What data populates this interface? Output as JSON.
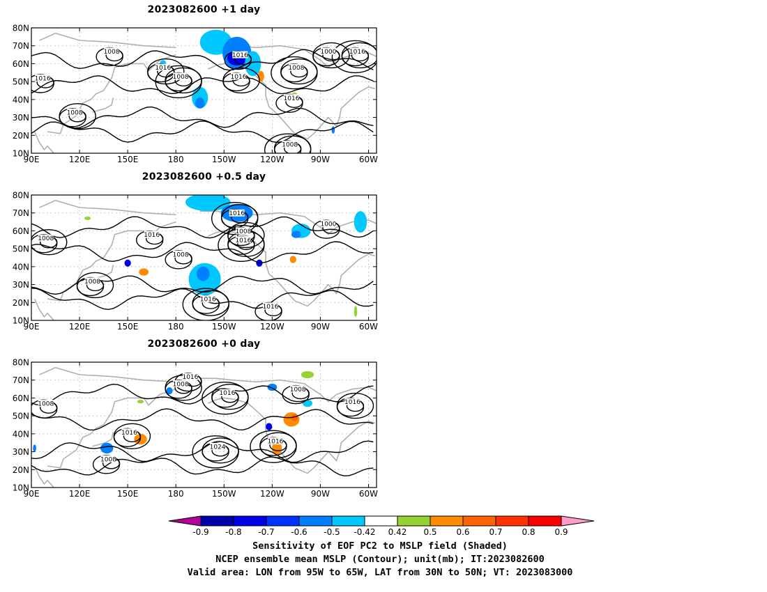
{
  "panels": [
    {
      "title": "2023082600  +1 day",
      "contour_labels": [
        {
          "text": "1008",
          "lon": 140,
          "lat": 67
        },
        {
          "text": "1016",
          "lon": 172,
          "lat": 58
        },
        {
          "text": "1008",
          "lon": 183,
          "lat": 53
        },
        {
          "text": "1016",
          "lon": 220,
          "lat": 65
        },
        {
          "text": "1016",
          "lon": 219,
          "lat": 53
        },
        {
          "text": "1008",
          "lon": 255,
          "lat": 58
        },
        {
          "text": "1016",
          "lon": 252,
          "lat": 41
        },
        {
          "text": "1000",
          "lon": 275,
          "lat": 67
        },
        {
          "text": "1016",
          "lon": 293,
          "lat": 67
        },
        {
          "text": "1016",
          "lon": 97,
          "lat": 52
        },
        {
          "text": "1008",
          "lon": 117,
          "lat": 33
        },
        {
          "text": "1008",
          "lon": 251,
          "lat": 15
        }
      ],
      "shading": [
        {
          "lon": 205,
          "lat": 72,
          "rlon": 10,
          "rlat": 7,
          "color": "#00c8ff"
        },
        {
          "lon": 218,
          "lat": 66,
          "rlon": 9,
          "rlat": 9,
          "color": "#0080ff"
        },
        {
          "lon": 218,
          "lat": 63,
          "rlon": 6,
          "rlat": 4,
          "color": "#0000e6"
        },
        {
          "lon": 228,
          "lat": 60,
          "rlon": 5,
          "rlat": 7,
          "color": "#00c8ff"
        },
        {
          "lon": 195,
          "lat": 41,
          "rlon": 5,
          "rlat": 6,
          "color": "#00c8ff"
        },
        {
          "lon": 195,
          "lat": 38,
          "rlon": 3,
          "rlat": 3,
          "color": "#0080ff"
        },
        {
          "lon": 233,
          "lat": 53,
          "rlon": 2,
          "rlat": 3,
          "color": "#ff8c00"
        },
        {
          "lon": 172,
          "lat": 60,
          "rlon": 2,
          "rlat": 2,
          "color": "#00c8ff"
        },
        {
          "lon": 138,
          "lat": 68,
          "rlon": 2,
          "rlat": 1,
          "color": "#96d232"
        },
        {
          "lon": 278,
          "lat": 23,
          "rlon": 1,
          "rlat": 2,
          "color": "#0080ff"
        },
        {
          "lon": 254,
          "lat": 42,
          "rlon": 2,
          "rlat": 2,
          "color": "#96d232"
        }
      ]
    },
    {
      "title": "2023082600  +0.5 day",
      "contour_labels": [
        {
          "text": "1016",
          "lon": 165,
          "lat": 58
        },
        {
          "text": "1008",
          "lon": 99,
          "lat": 56
        },
        {
          "text": "1016",
          "lon": 218,
          "lat": 70
        },
        {
          "text": "1008",
          "lon": 183,
          "lat": 47
        },
        {
          "text": "1008",
          "lon": 222,
          "lat": 60
        },
        {
          "text": "1016",
          "lon": 222,
          "lat": 55
        },
        {
          "text": "1000",
          "lon": 275,
          "lat": 64
        },
        {
          "text": "1008",
          "lon": 128,
          "lat": 32
        },
        {
          "text": "1016",
          "lon": 200,
          "lat": 22
        },
        {
          "text": "1016",
          "lon": 239,
          "lat": 18
        }
      ],
      "shading": [
        {
          "lon": 200,
          "lat": 76,
          "rlon": 14,
          "rlat": 5,
          "color": "#00c8ff"
        },
        {
          "lon": 218,
          "lat": 70,
          "rlon": 10,
          "rlat": 5,
          "color": "#0080ff"
        },
        {
          "lon": 198,
          "lat": 33,
          "rlon": 10,
          "rlat": 9,
          "color": "#00c8ff"
        },
        {
          "lon": 197,
          "lat": 36,
          "rlon": 4,
          "rlat": 4,
          "color": "#0080ff"
        },
        {
          "lon": 258,
          "lat": 60,
          "rlon": 6,
          "rlat": 4,
          "color": "#00c8ff"
        },
        {
          "lon": 255,
          "lat": 58,
          "rlon": 3,
          "rlat": 2,
          "color": "#0080ff"
        },
        {
          "lon": 295,
          "lat": 65,
          "rlon": 4,
          "rlat": 6,
          "color": "#00c8ff"
        },
        {
          "lon": 160,
          "lat": 37,
          "rlon": 3,
          "rlat": 2,
          "color": "#ff8c00"
        },
        {
          "lon": 150,
          "lat": 42,
          "rlon": 2,
          "rlat": 2,
          "color": "#0000e6"
        },
        {
          "lon": 232,
          "lat": 42,
          "rlon": 2,
          "rlat": 2,
          "color": "#0000e6"
        },
        {
          "lon": 253,
          "lat": 44,
          "rlon": 2,
          "rlat": 2,
          "color": "#ff8c00"
        },
        {
          "lon": 292,
          "lat": 15,
          "rlon": 1,
          "rlat": 3,
          "color": "#96d232"
        },
        {
          "lon": 125,
          "lat": 67,
          "rlon": 2,
          "rlat": 1,
          "color": "#96d232"
        }
      ]
    },
    {
      "title": "2023082600  +0 day",
      "contour_labels": [
        {
          "text": "1016",
          "lon": 189,
          "lat": 72
        },
        {
          "text": "1008",
          "lon": 183,
          "lat": 68
        },
        {
          "text": "1016",
          "lon": 212,
          "lat": 63
        },
        {
          "text": "1008",
          "lon": 99,
          "lat": 57
        },
        {
          "text": "1016",
          "lon": 151,
          "lat": 41
        },
        {
          "text": "1024",
          "lon": 206,
          "lat": 33
        },
        {
          "text": "1008",
          "lon": 256,
          "lat": 65
        },
        {
          "text": "1016",
          "lon": 290,
          "lat": 58
        },
        {
          "text": "1016",
          "lon": 242,
          "lat": 36
        },
        {
          "text": "1008",
          "lon": 138,
          "lat": 26
        }
      ],
      "shading": [
        {
          "lon": 252,
          "lat": 48,
          "rlon": 5,
          "rlat": 4,
          "color": "#ff8c00"
        },
        {
          "lon": 254,
          "lat": 49,
          "rlon": 2,
          "rlat": 2,
          "color": "#ff6400"
        },
        {
          "lon": 243,
          "lat": 32,
          "rlon": 3,
          "rlat": 4,
          "color": "#ff8c00"
        },
        {
          "lon": 158,
          "lat": 37,
          "rlon": 4,
          "rlat": 3,
          "color": "#ff8c00"
        },
        {
          "lon": 137,
          "lat": 32,
          "rlon": 4,
          "rlat": 3,
          "color": "#0080ff"
        },
        {
          "lon": 240,
          "lat": 66,
          "rlon": 3,
          "rlat": 2,
          "color": "#0080ff"
        },
        {
          "lon": 262,
          "lat": 57,
          "rlon": 3,
          "rlat": 2,
          "color": "#00c8ff"
        },
        {
          "lon": 262,
          "lat": 73,
          "rlon": 4,
          "rlat": 2,
          "color": "#96d232"
        },
        {
          "lon": 158,
          "lat": 58,
          "rlon": 2,
          "rlat": 1,
          "color": "#96d232"
        },
        {
          "lon": 92,
          "lat": 32,
          "rlon": 1,
          "rlat": 2,
          "color": "#0080ff"
        },
        {
          "lon": 176,
          "lat": 64,
          "rlon": 2,
          "rlat": 2,
          "color": "#0080ff"
        },
        {
          "lon": 238,
          "lat": 44,
          "rlon": 2,
          "rlat": 2,
          "color": "#0000e6"
        }
      ]
    }
  ],
  "map": {
    "lon_min": 90,
    "lon_max": 305,
    "lat_min": 10,
    "lat_max": 80,
    "lat_ticks": [
      {
        "lat": 80,
        "label": "80N"
      },
      {
        "lat": 70,
        "label": "70N"
      },
      {
        "lat": 60,
        "label": "60N"
      },
      {
        "lat": 50,
        "label": "50N"
      },
      {
        "lat": 40,
        "label": "40N"
      },
      {
        "lat": 30,
        "label": "30N"
      },
      {
        "lat": 20,
        "label": "20N"
      },
      {
        "lat": 10,
        "label": "10N"
      }
    ],
    "lon_ticks": [
      {
        "lon": 90,
        "label": "90E"
      },
      {
        "lon": 120,
        "label": "120E"
      },
      {
        "lon": 150,
        "label": "150E"
      },
      {
        "lon": 180,
        "label": "180"
      },
      {
        "lon": 210,
        "label": "150W"
      },
      {
        "lon": 240,
        "label": "120W"
      },
      {
        "lon": 270,
        "label": "90W"
      },
      {
        "lon": 300,
        "label": "60W"
      }
    ],
    "contour_color": "#000000",
    "coast_color": "#b0b0b0"
  },
  "colorbar": {
    "boundaries": [
      "-0.9",
      "-0.8",
      "-0.7",
      "-0.6",
      "-0.5",
      "-0.42",
      "0.42",
      "0.5",
      "0.6",
      "0.7",
      "0.8",
      "0.9"
    ],
    "low_end_color": "#b4009b",
    "high_end_color": "#ff9bc8",
    "colors": [
      "#0000aa",
      "#0000e6",
      "#0032ff",
      "#0080ff",
      "#00c8ff",
      "#ffffff",
      "#96d232",
      "#ff8c00",
      "#ff6400",
      "#ff3200",
      "#ff0000"
    ]
  },
  "caption": {
    "line1": "Sensitivity of EOF PC2 to MSLP field (Shaded)",
    "line2": "NCEP ensemble mean MSLP (Contour); unit(mb); IT:2023082600",
    "line3": "Valid area: LON from 95W to 65W, LAT from 30N to 50N; VT: 2023083000"
  }
}
